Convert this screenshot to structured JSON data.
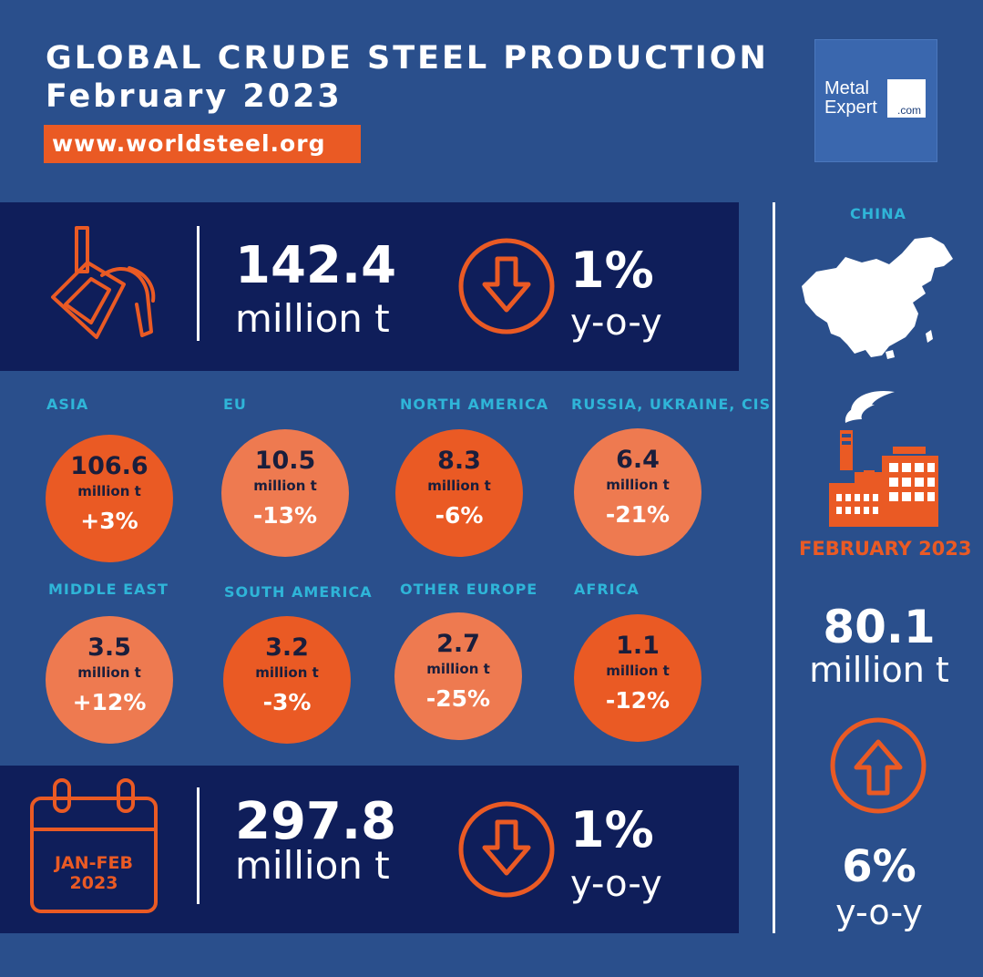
{
  "header": {
    "title_line1": "GLOBAL CRUDE STEEL PRODUCTION",
    "title_line2": "February 2023",
    "url": "www.worldsteel.org"
  },
  "logo": {
    "line1": "Metal",
    "line2": "Expert",
    "suffix": ".com"
  },
  "world_feb": {
    "icon": "ladle-icon",
    "value": "142.4",
    "unit": "million t",
    "trend_icon": "arrow-down-icon",
    "change": "1%",
    "change_label": "y-o-y"
  },
  "regions": [
    {
      "name": "ASIA",
      "value": "106.6",
      "unit": "million t",
      "change": "+3%",
      "tone": "dark"
    },
    {
      "name": "EU",
      "value": "10.5",
      "unit": "million t",
      "change": "-13%",
      "tone": "light"
    },
    {
      "name": "NORTH AMERICA",
      "value": "8.3",
      "unit": "million t",
      "change": "-6%",
      "tone": "dark"
    },
    {
      "name": "RUSSIA, UKRAINE, CIS",
      "value": "6.4",
      "unit": "million t",
      "change": "-21%",
      "tone": "light"
    },
    {
      "name": "MIDDLE EAST",
      "value": "3.5",
      "unit": "million t",
      "change": "+12%",
      "tone": "light"
    },
    {
      "name": "SOUTH AMERICA",
      "value": "3.2",
      "unit": "million t",
      "change": "-3%",
      "tone": "dark"
    },
    {
      "name": "OTHER EUROPE",
      "value": "2.7",
      "unit": "million t",
      "change": "-25%",
      "tone": "light"
    },
    {
      "name": "AFRICA",
      "value": "1.1",
      "unit": "million t",
      "change": "-12%",
      "tone": "dark"
    }
  ],
  "world_ytd": {
    "icon": "calendar-icon",
    "calendar_line1": "JAN-FEB",
    "calendar_line2": "2023",
    "value": "297.8",
    "unit": "million t",
    "trend_icon": "arrow-down-icon",
    "change": "1%",
    "change_label": "y-o-y"
  },
  "china": {
    "label": "CHINA",
    "map_icon": "china-map-icon",
    "factory_icon": "factory-icon",
    "period": "FEBRUARY 2023",
    "value": "80.1",
    "unit": "million t",
    "trend_icon": "arrow-up-icon",
    "change": "6%",
    "change_label": "y-o-y"
  },
  "colors": {
    "background": "#2a4f8c",
    "panel": "#0f1e5a",
    "accent_orange": "#ea5a24",
    "light_orange": "#ee7a50",
    "label_cyan": "#2fb5d8"
  }
}
